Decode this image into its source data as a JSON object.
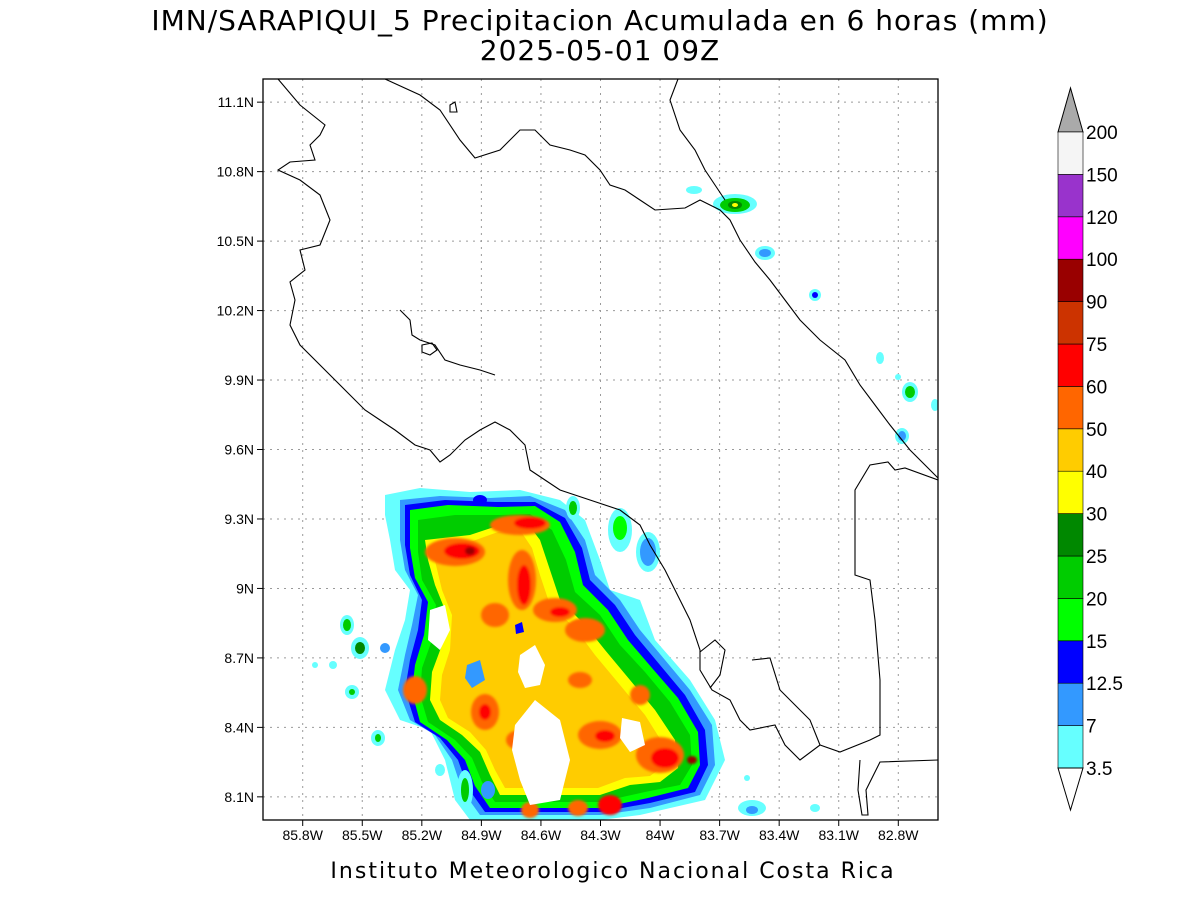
{
  "title": {
    "line1": "IMN/SARAPIQUI_5 Precipitacion Acumulada en 6 horas (mm)",
    "line2": "2025-05-01 09Z"
  },
  "footer": "Instituto Meteorologico Nacional Costa Rica",
  "map": {
    "lon_range": [
      -86.0,
      -82.6
    ],
    "lat_range": [
      8.0,
      11.2
    ],
    "lon_ticks": [
      {
        "value": -85.8,
        "label": "85.8W"
      },
      {
        "value": -85.5,
        "label": "85.5W"
      },
      {
        "value": -85.2,
        "label": "85.2W"
      },
      {
        "value": -84.9,
        "label": "84.9W"
      },
      {
        "value": -84.6,
        "label": "84.6W"
      },
      {
        "value": -84.3,
        "label": "84.3W"
      },
      {
        "value": -84.0,
        "label": "84W"
      },
      {
        "value": -83.7,
        "label": "83.7W"
      },
      {
        "value": -83.4,
        "label": "83.4W"
      },
      {
        "value": -83.1,
        "label": "83.1W"
      },
      {
        "value": -82.8,
        "label": "82.8W"
      }
    ],
    "lat_ticks": [
      {
        "value": 11.1,
        "label": "11.1N"
      },
      {
        "value": 10.8,
        "label": "10.8N"
      },
      {
        "value": 10.5,
        "label": "10.5N"
      },
      {
        "value": 10.2,
        "label": "10.2N"
      },
      {
        "value": 9.9,
        "label": "9.9N"
      },
      {
        "value": 9.6,
        "label": "9.6N"
      },
      {
        "value": 9.3,
        "label": "9.3N"
      },
      {
        "value": 9.0,
        "label": "9N"
      },
      {
        "value": 8.7,
        "label": "8.7N"
      },
      {
        "value": 8.4,
        "label": "8.4N"
      },
      {
        "value": 8.1,
        "label": "8.1N"
      }
    ],
    "grid": true
  },
  "colorbar": {
    "levels": [
      {
        "label": "3.5",
        "color": "#66ffff"
      },
      {
        "label": "7",
        "color": "#3399ff"
      },
      {
        "label": "12.5",
        "color": "#0000ff"
      },
      {
        "label": "15",
        "color": "#00ff00"
      },
      {
        "label": "20",
        "color": "#00cc00"
      },
      {
        "label": "25",
        "color": "#008800"
      },
      {
        "label": "30",
        "color": "#ffff00"
      },
      {
        "label": "40",
        "color": "#ffcc00"
      },
      {
        "label": "50",
        "color": "#ff6600"
      },
      {
        "label": "60",
        "color": "#ff0000"
      },
      {
        "label": "75",
        "color": "#cc3300"
      },
      {
        "label": "90",
        "color": "#990000"
      },
      {
        "label": "100",
        "color": "#ff00ff"
      },
      {
        "label": "120",
        "color": "#9933cc"
      },
      {
        "label": "150",
        "color": "#f5f5f5"
      },
      {
        "label": "200",
        "color": "#aaaaaa"
      }
    ],
    "under_color": "#ffffff",
    "over_color": "#aaaaaa"
  }
}
